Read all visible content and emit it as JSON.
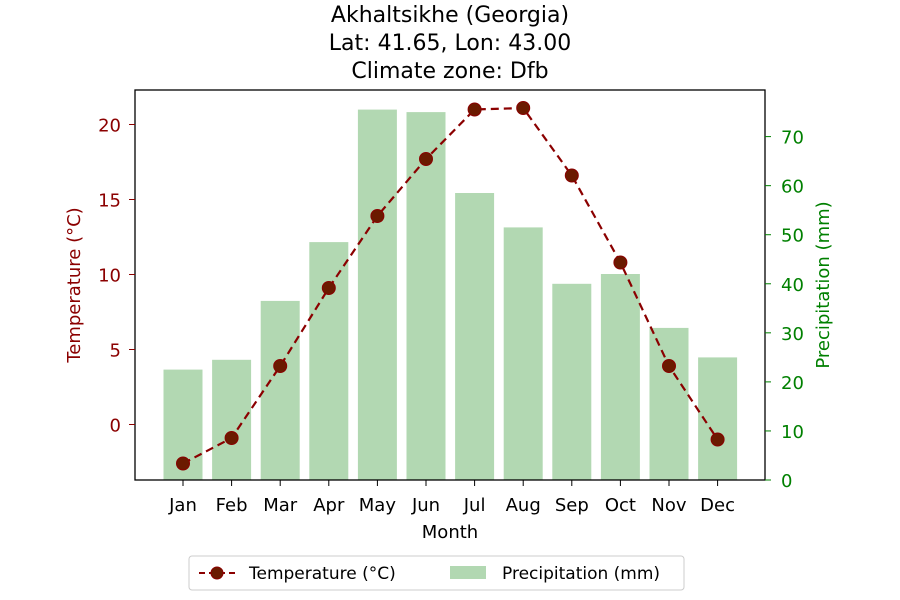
{
  "chart_data": {
    "type": "bar+line",
    "title_lines": [
      "Akhaltsikhe (Georgia)",
      "Lat: 41.65, Lon: 43.00",
      "Climate zone: Dfb"
    ],
    "xlabel": "Month",
    "ylabel_left": "Temperature (°C)",
    "ylabel_right": "Precipitation (mm)",
    "categories": [
      "Jan",
      "Feb",
      "Mar",
      "Apr",
      "May",
      "Jun",
      "Jul",
      "Aug",
      "Sep",
      "Oct",
      "Nov",
      "Dec"
    ],
    "series": [
      {
        "name": "Temperature (°C)",
        "kind": "line",
        "axis": "left",
        "color": "#8b0000",
        "values": [
          -2.6,
          -0.9,
          3.9,
          9.1,
          13.9,
          17.7,
          21.0,
          21.1,
          16.6,
          10.8,
          3.9,
          -1.0
        ]
      },
      {
        "name": "Precipitation (mm)",
        "kind": "bar",
        "axis": "right",
        "color": "#b2d8b2",
        "values": [
          22.5,
          24.5,
          36.5,
          48.5,
          75.5,
          75.0,
          58.5,
          51.5,
          40.0,
          42.0,
          31.0,
          25.0
        ]
      }
    ],
    "ylim_left": [
      -3.7,
      22.3
    ],
    "yticks_left": [
      0,
      5,
      10,
      15,
      20
    ],
    "ylim_right": [
      0,
      79.5
    ],
    "yticks_right": [
      0,
      10,
      20,
      30,
      40,
      50,
      60,
      70
    ],
    "colors": {
      "left_axis": "#8b0000",
      "right_axis": "#008000",
      "marker_fill": "#6b1a00"
    },
    "legend": {
      "position": "bottom-center"
    },
    "grid": false
  }
}
